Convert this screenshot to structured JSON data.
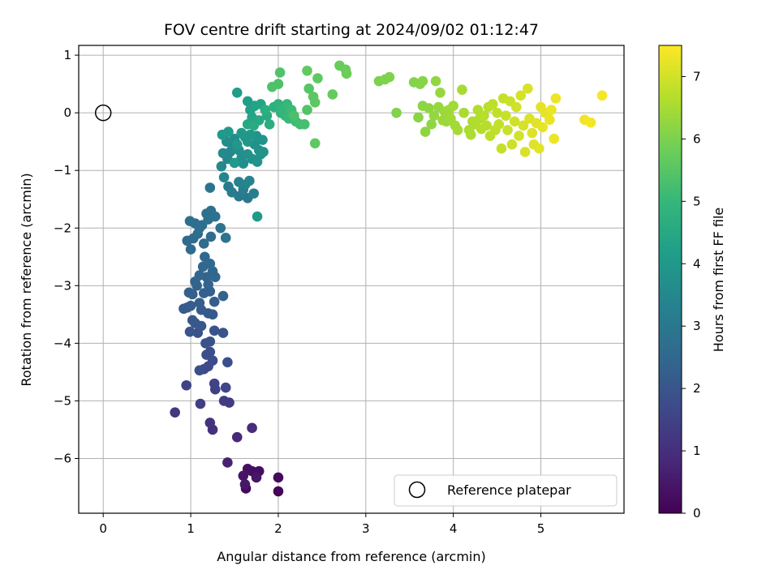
{
  "chart_data": {
    "type": "scatter",
    "title": "FOV centre drift starting at 2024/09/02 01:12:47",
    "xlabel": "Angular distance from reference (arcmin)",
    "ylabel": "Rotation from reference (arcmin)",
    "xlim": [
      -0.28,
      5.95
    ],
    "ylim": [
      -6.95,
      1.17
    ],
    "xticks": [
      0,
      1,
      2,
      3,
      4,
      5
    ],
    "xtick_labels": [
      "0",
      "1",
      "2",
      "3",
      "4",
      "5"
    ],
    "yticks": [
      -6,
      -5,
      -4,
      -3,
      -2,
      -1,
      0,
      1
    ],
    "ytick_labels": [
      "−6",
      "−5",
      "−4",
      "−3",
      "−2",
      "−1",
      "0",
      "1"
    ],
    "grid": true,
    "legend": {
      "placement": "lower-right",
      "entries": [
        "Reference platepar"
      ]
    },
    "colorbar": {
      "label": "Hours from first FF file",
      "range": [
        0,
        7.5
      ],
      "ticks": [
        0,
        1,
        2,
        3,
        4,
        5,
        6,
        7
      ],
      "tick_labels": [
        "0",
        "1",
        "2",
        "3",
        "4",
        "5",
        "6",
        "7"
      ],
      "colormap": "viridis"
    },
    "reference_point": {
      "x": 0,
      "y": 0
    },
    "series": [
      {
        "points": [
          [
            2.0,
            -6.57,
            0.1
          ],
          [
            1.63,
            -6.52,
            0.15
          ],
          [
            2.0,
            -6.33,
            0.2
          ],
          [
            1.7,
            -6.22,
            0.25
          ],
          [
            1.78,
            -6.22,
            0.3
          ],
          [
            1.65,
            -6.18,
            0.35
          ],
          [
            1.6,
            -6.3,
            0.4
          ],
          [
            1.75,
            -6.33,
            0.45
          ],
          [
            1.62,
            -6.45,
            0.5
          ],
          [
            1.42,
            -6.07,
            0.7
          ],
          [
            1.53,
            -5.63,
            0.85
          ],
          [
            1.7,
            -5.47,
            0.95
          ],
          [
            1.25,
            -5.5,
            1.05
          ],
          [
            1.22,
            -5.38,
            1.1
          ],
          [
            0.82,
            -5.2,
            1.2
          ],
          [
            1.44,
            -5.03,
            1.3
          ],
          [
            1.38,
            -5.0,
            1.35
          ],
          [
            1.11,
            -5.05,
            1.4
          ],
          [
            1.28,
            -4.8,
            1.45
          ],
          [
            0.95,
            -4.73,
            1.5
          ],
          [
            1.27,
            -4.7,
            1.55
          ],
          [
            1.4,
            -4.77,
            1.6
          ],
          [
            1.15,
            -4.45,
            1.7
          ],
          [
            1.2,
            -4.4,
            1.72
          ],
          [
            1.25,
            -4.3,
            1.75
          ],
          [
            1.18,
            -4.2,
            1.78
          ],
          [
            1.22,
            -4.15,
            1.8
          ],
          [
            1.42,
            -4.33,
            1.82
          ],
          [
            1.1,
            -4.47,
            1.85
          ],
          [
            1.17,
            -4.0,
            1.88
          ],
          [
            1.22,
            -3.97,
            1.9
          ],
          [
            1.08,
            -3.82,
            1.92
          ],
          [
            1.27,
            -3.78,
            1.95
          ],
          [
            1.37,
            -3.82,
            1.97
          ],
          [
            0.99,
            -3.8,
            2.0
          ],
          [
            1.05,
            -3.65,
            2.02
          ],
          [
            1.12,
            -3.7,
            2.05
          ],
          [
            1.02,
            -3.6,
            2.07
          ],
          [
            1.2,
            -3.48,
            2.1
          ],
          [
            1.25,
            -3.5,
            2.12
          ],
          [
            1.12,
            -3.42,
            2.14
          ],
          [
            0.92,
            -3.4,
            2.16
          ],
          [
            0.96,
            -3.38,
            2.18
          ],
          [
            1.0,
            -3.35,
            2.2
          ],
          [
            1.1,
            -3.3,
            2.22
          ],
          [
            1.27,
            -3.28,
            2.24
          ],
          [
            1.02,
            -3.15,
            2.26
          ],
          [
            0.98,
            -3.12,
            2.28
          ],
          [
            1.15,
            -3.13,
            2.3
          ],
          [
            1.22,
            -3.1,
            2.32
          ],
          [
            1.37,
            -3.18,
            2.34
          ],
          [
            1.07,
            -3.0,
            2.36
          ],
          [
            1.2,
            -2.98,
            2.38
          ],
          [
            1.05,
            -2.93,
            2.4
          ],
          [
            1.18,
            -2.85,
            2.42
          ],
          [
            1.1,
            -2.82,
            2.44
          ],
          [
            1.28,
            -2.85,
            2.46
          ],
          [
            1.25,
            -2.75,
            2.48
          ],
          [
            1.14,
            -2.67,
            2.5
          ],
          [
            1.22,
            -2.62,
            2.52
          ],
          [
            1.16,
            -2.5,
            2.54
          ],
          [
            1.0,
            -2.37,
            2.56
          ],
          [
            0.96,
            -2.22,
            2.58
          ],
          [
            1.03,
            -2.18,
            2.6
          ],
          [
            1.08,
            -2.1,
            2.62
          ],
          [
            1.15,
            -2.27,
            2.64
          ],
          [
            1.23,
            -2.15,
            2.66
          ],
          [
            1.1,
            -2.0,
            2.68
          ],
          [
            1.05,
            -1.92,
            2.7
          ],
          [
            0.99,
            -1.88,
            2.72
          ],
          [
            1.13,
            -1.95,
            2.74
          ],
          [
            1.2,
            -1.85,
            2.76
          ],
          [
            1.18,
            -1.75,
            2.78
          ],
          [
            1.23,
            -1.7,
            2.8
          ],
          [
            1.28,
            -1.8,
            2.82
          ],
          [
            1.34,
            -2.0,
            2.84
          ],
          [
            1.4,
            -2.17,
            2.86
          ],
          [
            1.22,
            -1.3,
            2.88
          ],
          [
            1.65,
            -1.48,
            3.0
          ],
          [
            1.55,
            -1.45,
            3.05
          ],
          [
            1.43,
            -1.28,
            3.1
          ],
          [
            1.47,
            -1.38,
            3.15
          ],
          [
            1.6,
            -1.33,
            3.2
          ],
          [
            1.72,
            -1.4,
            3.25
          ],
          [
            1.55,
            -1.2,
            3.3
          ],
          [
            1.62,
            -1.25,
            3.35
          ],
          [
            1.67,
            -1.18,
            3.4
          ],
          [
            1.38,
            -1.12,
            3.45
          ],
          [
            1.35,
            -0.93,
            3.5
          ],
          [
            1.42,
            -0.8,
            3.52
          ],
          [
            1.45,
            -0.68,
            3.55
          ],
          [
            1.37,
            -0.7,
            3.58
          ],
          [
            1.52,
            -0.62,
            3.6
          ],
          [
            1.47,
            -0.55,
            3.62
          ],
          [
            1.41,
            -0.5,
            3.64
          ],
          [
            1.5,
            -0.45,
            3.66
          ],
          [
            1.55,
            -0.65,
            3.68
          ],
          [
            1.58,
            -0.78,
            3.7
          ],
          [
            1.6,
            -0.88,
            3.72
          ],
          [
            1.65,
            -0.72,
            3.74
          ],
          [
            1.7,
            -0.8,
            3.76
          ],
          [
            1.73,
            -0.55,
            3.78
          ],
          [
            1.76,
            -0.85,
            3.8
          ],
          [
            1.78,
            -0.65,
            3.82
          ],
          [
            1.8,
            -0.72,
            3.84
          ],
          [
            1.83,
            -0.68,
            3.86
          ],
          [
            1.82,
            -0.47,
            3.88
          ],
          [
            1.75,
            -0.4,
            3.9
          ],
          [
            1.68,
            -0.38,
            3.92
          ],
          [
            1.62,
            -0.42,
            3.94
          ],
          [
            1.65,
            -0.5,
            3.96
          ],
          [
            1.58,
            -0.35,
            3.98
          ],
          [
            1.53,
            -0.55,
            4.0
          ],
          [
            1.43,
            -0.33,
            4.02
          ],
          [
            1.36,
            -0.38,
            4.04
          ],
          [
            1.5,
            -0.87,
            4.06
          ],
          [
            1.76,
            -1.8,
            4.08
          ],
          [
            1.53,
            0.35,
            4.15
          ],
          [
            1.65,
            0.2,
            4.2
          ],
          [
            1.68,
            0.05,
            4.25
          ],
          [
            1.73,
            0.12,
            4.3
          ],
          [
            1.8,
            0.15,
            4.35
          ],
          [
            1.7,
            -0.08,
            4.4
          ],
          [
            1.65,
            -0.2,
            4.45
          ],
          [
            1.78,
            -0.13,
            4.5
          ],
          [
            1.72,
            -0.22,
            4.55
          ],
          [
            1.87,
            -0.05,
            4.6
          ],
          [
            1.9,
            -0.2,
            4.65
          ],
          [
            1.85,
            0.05,
            4.7
          ],
          [
            1.95,
            0.1,
            4.75
          ],
          [
            2.0,
            0.15,
            4.8
          ],
          [
            2.03,
            0.0,
            4.85
          ],
          [
            2.05,
            0.08,
            4.9
          ],
          [
            2.08,
            -0.05,
            4.95
          ],
          [
            2.1,
            0.15,
            5.0
          ],
          [
            2.12,
            -0.1,
            5.05
          ],
          [
            2.15,
            0.05,
            5.1
          ],
          [
            2.2,
            -0.15,
            5.15
          ],
          [
            2.25,
            -0.2,
            5.2
          ],
          [
            2.3,
            -0.2,
            5.25
          ],
          [
            2.18,
            -0.05,
            5.3
          ],
          [
            2.0,
            0.5,
            5.35
          ],
          [
            1.93,
            0.45,
            5.38
          ],
          [
            2.02,
            0.7,
            5.4
          ],
          [
            2.33,
            0.05,
            5.45
          ],
          [
            2.35,
            0.42,
            5.5
          ],
          [
            2.4,
            0.28,
            5.55
          ],
          [
            2.42,
            0.18,
            5.58
          ],
          [
            2.45,
            0.6,
            5.6
          ],
          [
            2.42,
            -0.53,
            5.62
          ],
          [
            2.33,
            0.73,
            5.65
          ],
          [
            2.62,
            0.32,
            5.7
          ],
          [
            2.7,
            0.82,
            5.75
          ],
          [
            2.77,
            0.75,
            5.78
          ],
          [
            2.78,
            0.68,
            5.8
          ],
          [
            3.15,
            0.55,
            6.0
          ],
          [
            3.22,
            0.58,
            6.02
          ],
          [
            3.27,
            0.62,
            6.04
          ],
          [
            3.35,
            0.0,
            6.06
          ],
          [
            3.55,
            0.53,
            6.1
          ],
          [
            3.62,
            0.5,
            6.12
          ],
          [
            3.65,
            0.55,
            6.14
          ],
          [
            3.6,
            -0.08,
            6.16
          ],
          [
            3.65,
            0.12,
            6.18
          ],
          [
            3.72,
            0.08,
            6.2
          ],
          [
            3.68,
            -0.33,
            6.22
          ],
          [
            3.75,
            -0.2,
            6.24
          ],
          [
            3.8,
            0.55,
            6.26
          ],
          [
            3.78,
            -0.05,
            6.28
          ],
          [
            3.83,
            0.1,
            6.3
          ],
          [
            3.85,
            0.35,
            6.32
          ],
          [
            3.88,
            -0.13,
            6.34
          ],
          [
            3.9,
            0.02,
            6.36
          ],
          [
            3.92,
            -0.15,
            6.38
          ],
          [
            3.95,
            0.05,
            6.4
          ],
          [
            3.97,
            -0.1,
            6.42
          ],
          [
            4.0,
            0.12,
            6.44
          ],
          [
            4.02,
            -0.22,
            6.46
          ],
          [
            4.05,
            -0.3,
            6.48
          ],
          [
            4.1,
            0.4,
            6.5
          ],
          [
            4.12,
            0.0,
            6.52
          ],
          [
            4.18,
            -0.3,
            6.54
          ],
          [
            4.2,
            -0.38,
            6.56
          ],
          [
            4.22,
            -0.15,
            6.58
          ],
          [
            4.25,
            -0.2,
            6.6
          ],
          [
            4.28,
            0.05,
            6.62
          ],
          [
            4.3,
            -0.1,
            6.64
          ],
          [
            4.32,
            -0.28,
            6.66
          ],
          [
            4.35,
            -0.05,
            6.68
          ],
          [
            4.38,
            -0.22,
            6.7
          ],
          [
            4.4,
            0.1,
            6.72
          ],
          [
            4.42,
            -0.4,
            6.74
          ],
          [
            4.45,
            0.15,
            6.76
          ],
          [
            4.48,
            -0.3,
            6.78
          ],
          [
            4.5,
            0.0,
            6.8
          ],
          [
            4.52,
            -0.2,
            6.82
          ],
          [
            4.55,
            -0.62,
            6.84
          ],
          [
            4.57,
            0.25,
            6.86
          ],
          [
            4.6,
            -0.05,
            6.88
          ],
          [
            4.62,
            -0.3,
            6.9
          ],
          [
            4.65,
            0.2,
            6.92
          ],
          [
            4.67,
            -0.55,
            6.94
          ],
          [
            4.7,
            -0.15,
            6.96
          ],
          [
            4.72,
            0.1,
            6.98
          ],
          [
            4.75,
            -0.4,
            7.0
          ],
          [
            4.77,
            0.3,
            7.02
          ],
          [
            4.8,
            -0.22,
            7.04
          ],
          [
            4.82,
            -0.68,
            7.06
          ],
          [
            4.85,
            0.42,
            7.08
          ],
          [
            4.87,
            -0.1,
            7.1
          ],
          [
            4.9,
            -0.35,
            7.12
          ],
          [
            4.92,
            -0.55,
            7.14
          ],
          [
            4.95,
            -0.18,
            7.16
          ],
          [
            4.98,
            -0.62,
            7.18
          ],
          [
            5.0,
            0.1,
            7.2
          ],
          [
            5.02,
            -0.25,
            7.22
          ],
          [
            5.05,
            0.0,
            7.24
          ],
          [
            5.1,
            -0.12,
            7.26
          ],
          [
            5.12,
            0.05,
            7.28
          ],
          [
            5.15,
            -0.45,
            7.3
          ],
          [
            5.17,
            0.25,
            7.32
          ],
          [
            5.5,
            -0.12,
            7.36
          ],
          [
            5.57,
            -0.17,
            7.38
          ],
          [
            5.7,
            0.3,
            7.42
          ]
        ]
      }
    ]
  }
}
